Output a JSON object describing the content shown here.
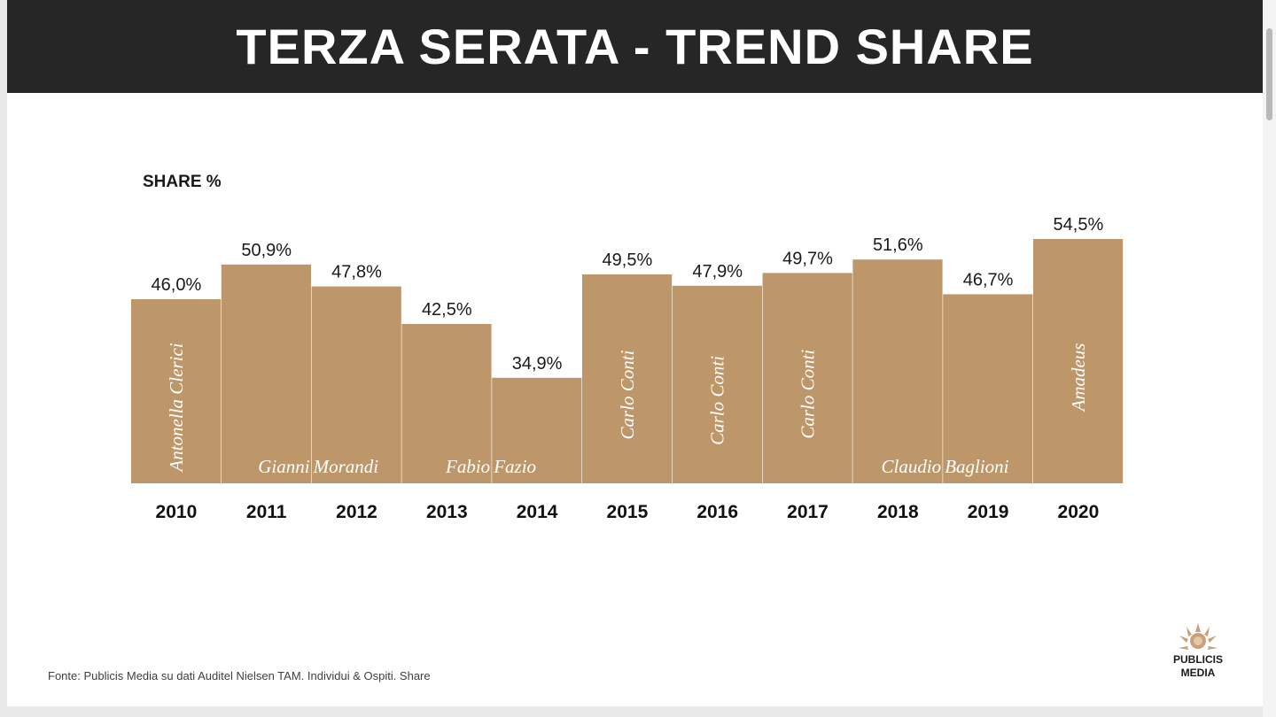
{
  "title": "TERZA SERATA - TREND SHARE",
  "source_note": "Fonte: Publicis Media su dati Auditel Nielsen TAM. Individui & Ospiti. Share",
  "logo": {
    "line1": "PUBLICIS",
    "line2": "MEDIA",
    "icon": "sunburst-logo-icon"
  },
  "colors": {
    "bar": "#bd976a",
    "header": "#262626",
    "label": "#1a1a1a"
  },
  "chart_data": {
    "type": "bar",
    "ylabel": "SHARE %",
    "categories": [
      "2010",
      "2011",
      "2012",
      "2013",
      "2014",
      "2015",
      "2016",
      "2017",
      "2018",
      "2019",
      "2020"
    ],
    "values": [
      46.0,
      50.9,
      47.8,
      42.5,
      34.9,
      49.5,
      47.9,
      49.7,
      51.6,
      46.7,
      54.5
    ],
    "value_labels": [
      "46,0%",
      "50,9%",
      "47,8%",
      "42,5%",
      "34,9%",
      "49,5%",
      "47,9%",
      "49,7%",
      "51,6%",
      "46,7%",
      "54,5%"
    ],
    "hosts": [
      {
        "text": "Antonella Clerici",
        "orientation": "vertical"
      },
      {
        "text": "Gianni",
        "orientation": "horizontal"
      },
      {
        "text": "Morandi",
        "orientation": "horizontal"
      },
      {
        "text": "Fabio",
        "orientation": "horizontal"
      },
      {
        "text": "Fazio",
        "orientation": "horizontal"
      },
      {
        "text": "Carlo Conti",
        "orientation": "vertical"
      },
      {
        "text": "Carlo Conti",
        "orientation": "vertical"
      },
      {
        "text": "Carlo Conti",
        "orientation": "vertical"
      },
      {
        "text": "Claudio",
        "orientation": "horizontal"
      },
      {
        "text": "Baglioni",
        "orientation": "horizontal"
      },
      {
        "text": "Amadeus",
        "orientation": "vertical"
      }
    ],
    "ylim": [
      0,
      60
    ],
    "grid": false,
    "legend": "none"
  }
}
